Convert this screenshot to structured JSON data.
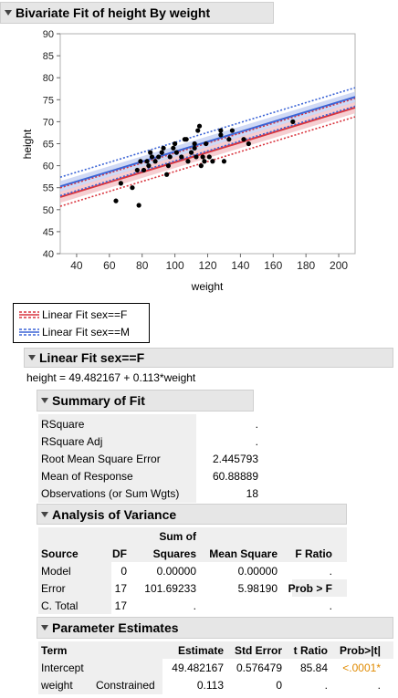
{
  "report": {
    "title": "Bivariate Fit of height By weight",
    "fit_title": "Linear Fit sex==F",
    "equation": "height = 49.482167 + 0.113*weight"
  },
  "legend": {
    "items": [
      {
        "label": "Linear Fit sex==F",
        "color": "#d9343e"
      },
      {
        "label": "Linear Fit sex==M",
        "color": "#3b64d6"
      }
    ]
  },
  "summary_of_fit": {
    "title": "Summary of Fit",
    "rows": [
      {
        "label": "RSquare",
        "value": "."
      },
      {
        "label": "RSquare Adj",
        "value": "."
      },
      {
        "label": "Root Mean Square Error",
        "value": "2.445793"
      },
      {
        "label": "Mean of Response",
        "value": "60.88889"
      },
      {
        "label": "Observations (or Sum Wgts)",
        "value": "18"
      }
    ]
  },
  "anova": {
    "title": "Analysis of Variance",
    "header_top": {
      "sum_of": "Sum of"
    },
    "headers": {
      "source": "Source",
      "df": "DF",
      "squares": "Squares",
      "mean_square": "Mean Square",
      "f_ratio": "F Ratio"
    },
    "rows": [
      {
        "source": "Model",
        "df": "0",
        "ss": "0.00000",
        "ms": "0.00000",
        "f": "."
      },
      {
        "source": "Error",
        "df": "17",
        "ss": "101.69233",
        "ms": "5.98190",
        "f": "Prob > F"
      },
      {
        "source": "C. Total",
        "df": "17",
        "ss": ".",
        "ms": "",
        "f": "."
      }
    ]
  },
  "parameter_estimates": {
    "title": "Parameter Estimates",
    "headers": {
      "term": "Term",
      "estimate": "Estimate",
      "std_error": "Std Error",
      "t_ratio": "t Ratio",
      "prob": "Prob>|t|"
    },
    "rows": [
      {
        "term": "Intercept",
        "note": "",
        "estimate": "49.482167",
        "std_error": "0.576479",
        "t_ratio": "85.84",
        "prob": "<.0001*"
      },
      {
        "term": "weight",
        "note": "Constrained",
        "estimate": "0.113",
        "std_error": "0",
        "t_ratio": ".",
        "prob": "."
      }
    ]
  },
  "chart_data": {
    "type": "scatter",
    "xlabel": "weight",
    "ylabel": "height",
    "xlim": [
      30,
      210
    ],
    "ylim": [
      40,
      90
    ],
    "x_ticks": [
      40,
      60,
      80,
      100,
      120,
      140,
      160,
      180,
      200
    ],
    "y_ticks": [
      40,
      45,
      50,
      55,
      60,
      65,
      70,
      75,
      80,
      85,
      90
    ],
    "grid": false,
    "points": [
      [
        64,
        52
      ],
      [
        67,
        56
      ],
      [
        74,
        55
      ],
      [
        77,
        59
      ],
      [
        78,
        51
      ],
      [
        79,
        61
      ],
      [
        81,
        59
      ],
      [
        83,
        61
      ],
      [
        84,
        60
      ],
      [
        85,
        63
      ],
      [
        86,
        62
      ],
      [
        88,
        61
      ],
      [
        90,
        62
      ],
      [
        92,
        63
      ],
      [
        93,
        64
      ],
      [
        95,
        58
      ],
      [
        96,
        60
      ],
      [
        97,
        62
      ],
      [
        99,
        64
      ],
      [
        100,
        65
      ],
      [
        101,
        63
      ],
      [
        104,
        62
      ],
      [
        106,
        66
      ],
      [
        107,
        66
      ],
      [
        108,
        61
      ],
      [
        110,
        63
      ],
      [
        112,
        64
      ],
      [
        112,
        65
      ],
      [
        113,
        62
      ],
      [
        114,
        68
      ],
      [
        115,
        69
      ],
      [
        116,
        60
      ],
      [
        117,
        62
      ],
      [
        118,
        61
      ],
      [
        119,
        65
      ],
      [
        121,
        62
      ],
      [
        123,
        61
      ],
      [
        128,
        67
      ],
      [
        128,
        68
      ],
      [
        130,
        61
      ],
      [
        133,
        66
      ],
      [
        135,
        68
      ],
      [
        142,
        66
      ],
      [
        145,
        65
      ],
      [
        172,
        70
      ]
    ],
    "series": [
      {
        "name": "Linear Fit sex==F",
        "color": "#d9343e",
        "intercept": 49.482167,
        "slope": 0.113,
        "ci_half": 1.3,
        "pi_half": 2.1
      },
      {
        "name": "Linear Fit sex==M",
        "color": "#3b64d6",
        "intercept": 51.9,
        "slope": 0.113,
        "ci_half": 1.2,
        "pi_half": 2.1
      }
    ]
  }
}
